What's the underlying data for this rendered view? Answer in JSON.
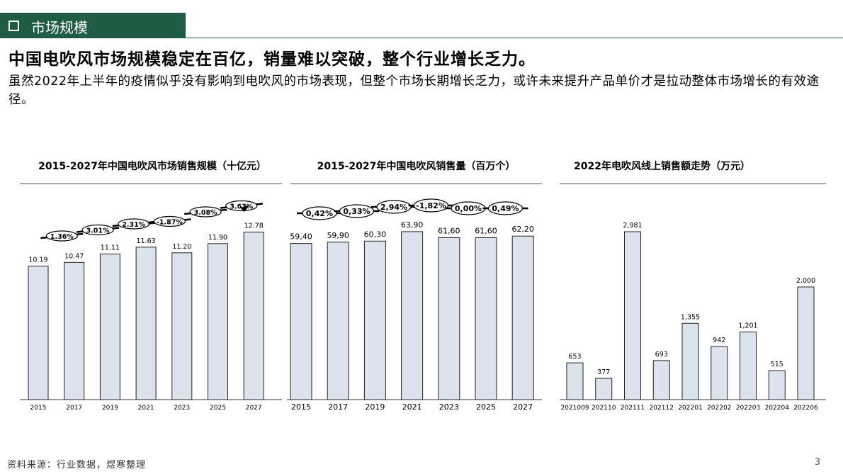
{
  "section_label": "市场规模",
  "headline": "中国电吹风市场规模稳定在百亿，销量难以突破，整个行业增长乏力。",
  "paragraph": "虽然2022年上半年的疫情似乎没有影响到电吹风的市场表现，但整个市场长期增长乏力，或许未来提升产品单价才是拉动整体市场增长的有效途径。",
  "source": "资料来源：行业数据，煜寒整理",
  "page_number": "3",
  "colors": {
    "header": "#1f5c45",
    "bar_fill": "#dde3ec",
    "bar_stroke": "#000"
  },
  "chart_data": [
    {
      "type": "bar",
      "title": "2015-2027年中国电吹风市场销售规模（十亿元）",
      "categories": [
        "2015",
        "2017",
        "2019",
        "2021",
        "2023",
        "2025",
        "2027"
      ],
      "values": [
        10.19,
        10.47,
        11.11,
        11.63,
        11.2,
        11.9,
        12.78
      ],
      "labels": [
        "10.19",
        "10.47",
        "11.11",
        "11.63",
        "11.20",
        "11.90",
        "12.78"
      ],
      "growth_labels": [
        "1.36%",
        "3.01%",
        "2.31%",
        "-1.87%",
        "3.08%",
        "3.63%"
      ]
    },
    {
      "type": "bar",
      "title": "2015-2027年中国电吹风销售量（百万个）",
      "categories": [
        "2015",
        "2017",
        "2019",
        "2021",
        "2023",
        "2025",
        "2027"
      ],
      "values": [
        59.4,
        59.9,
        60.3,
        63.9,
        61.6,
        61.6,
        62.2
      ],
      "labels": [
        "59,40",
        "59,90",
        "60,30",
        "63,90",
        "61,60",
        "61,60",
        "62,20"
      ],
      "growth_labels": [
        "0,42%",
        "0,33%",
        "2,94%",
        "-1,82%",
        "0,00%",
        "0,49%"
      ]
    },
    {
      "type": "bar",
      "title": "2022年电吹风线上销售额走势（万元）",
      "categories": [
        "2021009",
        "202110",
        "202111",
        "202112",
        "202201",
        "202202",
        "202203",
        "202204",
        "202206"
      ],
      "values": [
        653,
        377,
        2981,
        693,
        1355,
        942,
        1201,
        515,
        2000
      ],
      "labels": [
        "653",
        "377",
        "2,981",
        "693",
        "1,355",
        "942",
        "1,201",
        "515",
        "2,000"
      ]
    }
  ]
}
